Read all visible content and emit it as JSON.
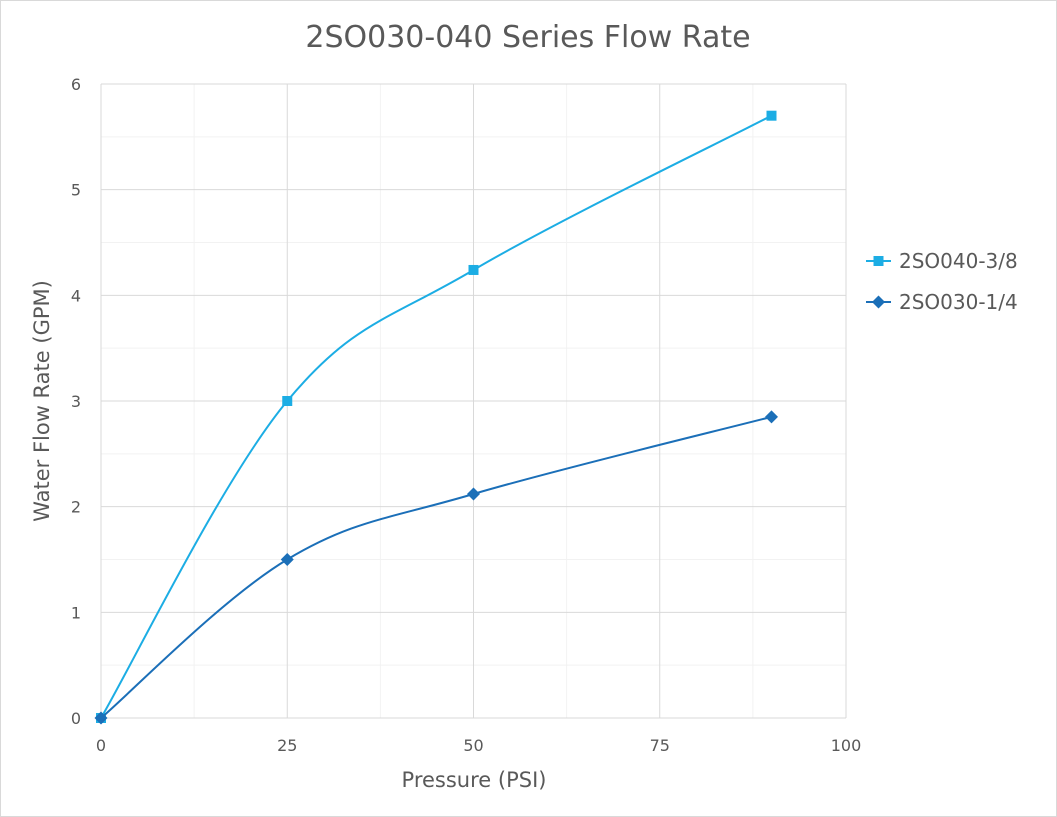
{
  "chart_data": {
    "type": "line",
    "title": "2SO030-040 Series Flow Rate",
    "xlabel": "Pressure (PSI)",
    "ylabel": "Water Flow Rate (GPM)",
    "xlim": [
      0,
      100
    ],
    "ylim": [
      0,
      6
    ],
    "x_ticks": [
      0,
      25,
      50,
      75,
      100
    ],
    "y_ticks": [
      0,
      1,
      2,
      3,
      4,
      5,
      6
    ],
    "grid": true,
    "smooth": true,
    "legend_position": "right",
    "series": [
      {
        "name": "2SO040-3/8",
        "marker": "square",
        "color": "#1CADE4",
        "points": [
          [
            0,
            0
          ],
          [
            25,
            3.0
          ],
          [
            50,
            4.24
          ],
          [
            90,
            5.7
          ]
        ]
      },
      {
        "name": "2SO030-1/4",
        "marker": "diamond",
        "color": "#1B6FB8",
        "points": [
          [
            0,
            0
          ],
          [
            25,
            1.5
          ],
          [
            50,
            2.12
          ],
          [
            90,
            2.85
          ]
        ]
      }
    ]
  }
}
